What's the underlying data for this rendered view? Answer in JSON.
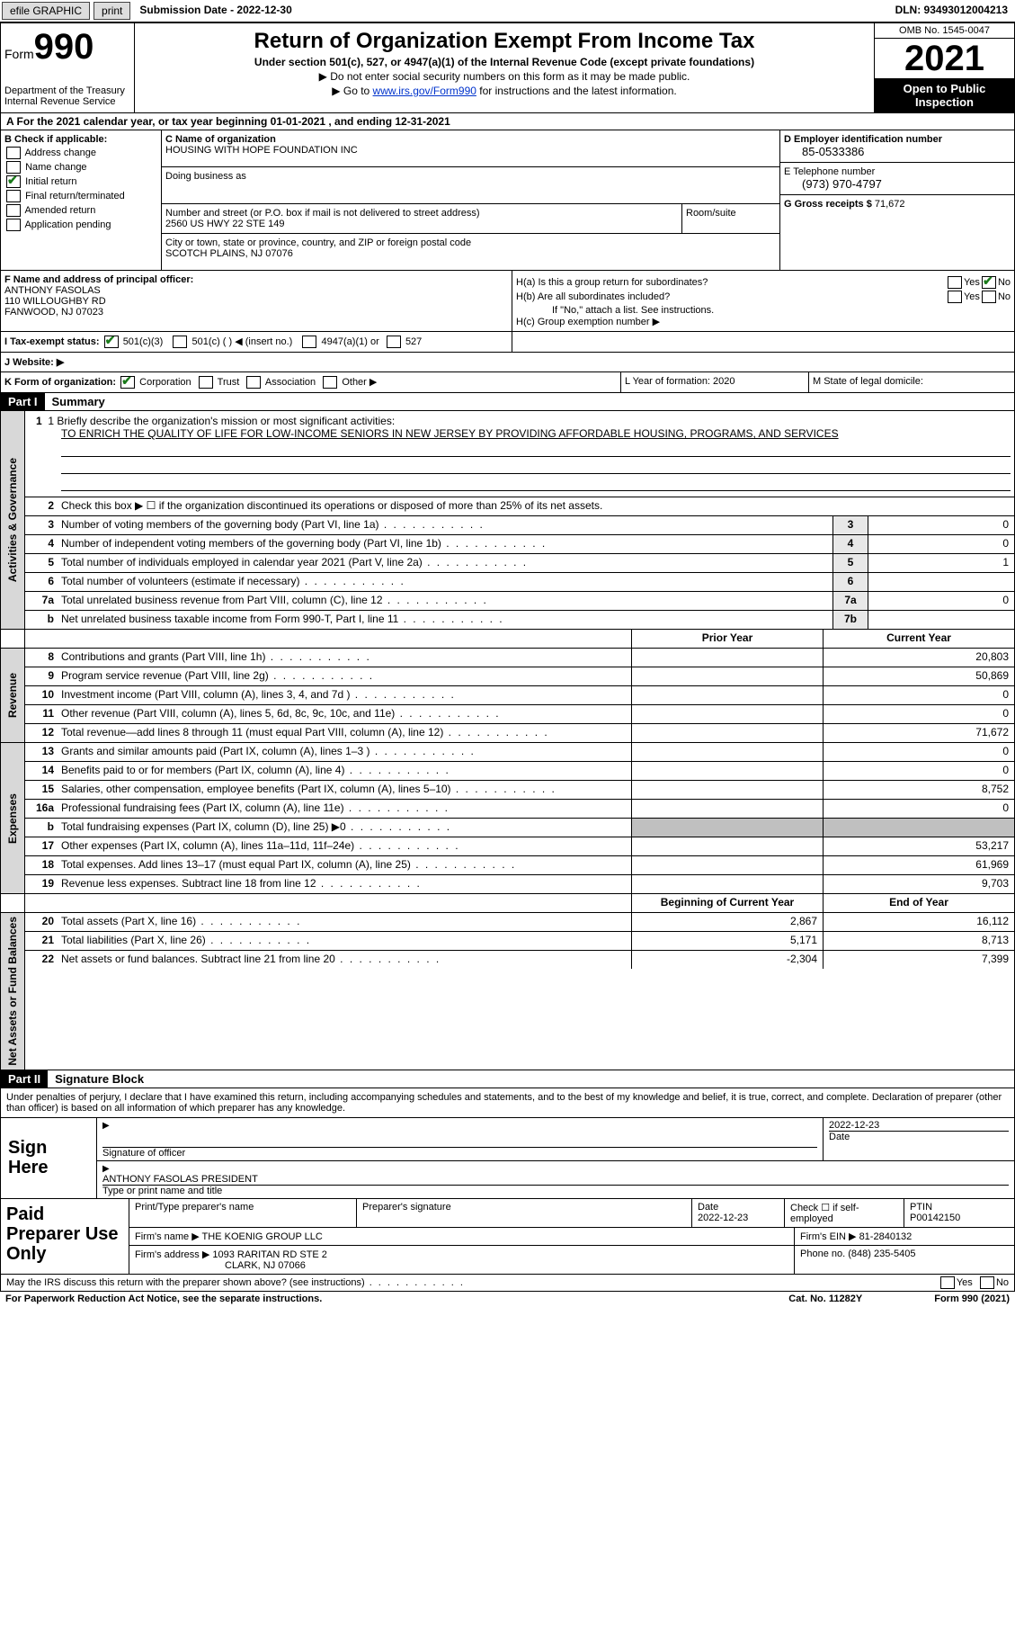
{
  "topbar": {
    "efile": "efile GRAPHIC",
    "print": "print",
    "sub_label": "Submission Date - 2022-12-30",
    "dln_label": "DLN: 93493012004213"
  },
  "header": {
    "form_word": "Form",
    "form_num": "990",
    "title": "Return of Organization Exempt From Income Tax",
    "subtitle": "Under section 501(c), 527, or 4947(a)(1) of the Internal Revenue Code (except private foundations)",
    "note1": "▶ Do not enter social security numbers on this form as it may be made public.",
    "note2_pre": "▶ Go to ",
    "note2_link": "www.irs.gov/Form990",
    "note2_post": " for instructions and the latest information.",
    "dept": "Department of the Treasury",
    "irs": "Internal Revenue Service",
    "omb": "OMB No. 1545-0047",
    "year": "2021",
    "open": "Open to Public Inspection"
  },
  "rowA": "A For the 2021 calendar year, or tax year beginning 01-01-2021   , and ending 12-31-2021",
  "colB": {
    "hdr": "B Check if applicable:",
    "items": [
      "Address change",
      "Name change",
      "Initial return",
      "Final return/terminated",
      "Amended return",
      "Application pending"
    ],
    "checked_idx": 2
  },
  "colC": {
    "name_lbl": "C Name of organization",
    "name": "HOUSING WITH HOPE FOUNDATION INC",
    "dba_lbl": "Doing business as",
    "addr_lbl": "Number and street (or P.O. box if mail is not delivered to street address)",
    "room_lbl": "Room/suite",
    "addr": "2560 US HWY 22 STE 149",
    "city_lbl": "City or town, state or province, country, and ZIP or foreign postal code",
    "city": "SCOTCH PLAINS, NJ  07076"
  },
  "colDE": {
    "d_lbl": "D Employer identification number",
    "ein": "85-0533386",
    "e_lbl": "E Telephone number",
    "phone": "(973) 970-4797",
    "g_lbl": "G Gross receipts $",
    "gross": "71,672"
  },
  "colF": {
    "lbl": "F Name and address of principal officer:",
    "name": "ANTHONY FASOLAS",
    "addr1": "110 WILLOUGHBY RD",
    "addr2": "FANWOOD, NJ  07023"
  },
  "colH": {
    "ha": "H(a)  Is this a group return for subordinates?",
    "hb": "H(b)  Are all subordinates included?",
    "hb_note": "If \"No,\" attach a list. See instructions.",
    "hc": "H(c)  Group exemption number ▶",
    "yes": "Yes",
    "no": "No"
  },
  "rowI": {
    "lbl": "I   Tax-exempt status:",
    "opt1": "501(c)(3)",
    "opt2": "501(c) (  ) ◀ (insert no.)",
    "opt3": "4947(a)(1) or",
    "opt4": "527"
  },
  "rowJ": "J   Website: ▶",
  "rowK": {
    "lbl": "K Form of organization:",
    "opts": [
      "Corporation",
      "Trust",
      "Association",
      "Other ▶"
    ],
    "L": "L Year of formation: 2020",
    "M": "M State of legal domicile:"
  },
  "part1": {
    "hdr": "Part I",
    "title": "Summary",
    "tab1": "Activities & Governance",
    "line1_lbl": "1   Briefly describe the organization's mission or most significant activities:",
    "line1_val": "TO ENRICH THE QUALITY OF LIFE FOR LOW-INCOME SENIORS IN NEW JERSEY BY PROVIDING AFFORDABLE HOUSING, PROGRAMS, AND SERVICES",
    "line2": "Check this box ▶ ☐  if the organization discontinued its operations or disposed of more than 25% of its net assets.",
    "rows_ag": [
      {
        "n": "3",
        "d": "Number of voting members of the governing body (Part VI, line 1a)",
        "b": "3",
        "v": "0"
      },
      {
        "n": "4",
        "d": "Number of independent voting members of the governing body (Part VI, line 1b)",
        "b": "4",
        "v": "0"
      },
      {
        "n": "5",
        "d": "Total number of individuals employed in calendar year 2021 (Part V, line 2a)",
        "b": "5",
        "v": "1"
      },
      {
        "n": "6",
        "d": "Total number of volunteers (estimate if necessary)",
        "b": "6",
        "v": ""
      },
      {
        "n": "7a",
        "d": "Total unrelated business revenue from Part VIII, column (C), line 12",
        "b": "7a",
        "v": "0"
      },
      {
        "n": "b",
        "d": "Net unrelated business taxable income from Form 990-T, Part I, line 11",
        "b": "7b",
        "v": ""
      }
    ],
    "prior_hdr": "Prior Year",
    "curr_hdr": "Current Year",
    "tab2": "Revenue",
    "rows_rev": [
      {
        "n": "8",
        "d": "Contributions and grants (Part VIII, line 1h)",
        "p": "",
        "c": "20,803"
      },
      {
        "n": "9",
        "d": "Program service revenue (Part VIII, line 2g)",
        "p": "",
        "c": "50,869"
      },
      {
        "n": "10",
        "d": "Investment income (Part VIII, column (A), lines 3, 4, and 7d )",
        "p": "",
        "c": "0"
      },
      {
        "n": "11",
        "d": "Other revenue (Part VIII, column (A), lines 5, 6d, 8c, 9c, 10c, and 11e)",
        "p": "",
        "c": "0"
      },
      {
        "n": "12",
        "d": "Total revenue—add lines 8 through 11 (must equal Part VIII, column (A), line 12)",
        "p": "",
        "c": "71,672"
      }
    ],
    "tab3": "Expenses",
    "rows_exp": [
      {
        "n": "13",
        "d": "Grants and similar amounts paid (Part IX, column (A), lines 1–3 )",
        "p": "",
        "c": "0"
      },
      {
        "n": "14",
        "d": "Benefits paid to or for members (Part IX, column (A), line 4)",
        "p": "",
        "c": "0"
      },
      {
        "n": "15",
        "d": "Salaries, other compensation, employee benefits (Part IX, column (A), lines 5–10)",
        "p": "",
        "c": "8,752"
      },
      {
        "n": "16a",
        "d": "Professional fundraising fees (Part IX, column (A), line 11e)",
        "p": "",
        "c": "0"
      },
      {
        "n": "b",
        "d": "Total fundraising expenses (Part IX, column (D), line 25) ▶0",
        "p": "GRAY",
        "c": "GRAY"
      },
      {
        "n": "17",
        "d": "Other expenses (Part IX, column (A), lines 11a–11d, 11f–24e)",
        "p": "",
        "c": "53,217"
      },
      {
        "n": "18",
        "d": "Total expenses. Add lines 13–17 (must equal Part IX, column (A), line 25)",
        "p": "",
        "c": "61,969"
      },
      {
        "n": "19",
        "d": "Revenue less expenses. Subtract line 18 from line 12",
        "p": "",
        "c": "9,703"
      }
    ],
    "tab4": "Net Assets or Fund Balances",
    "boy_hdr": "Beginning of Current Year",
    "eoy_hdr": "End of Year",
    "rows_na": [
      {
        "n": "20",
        "d": "Total assets (Part X, line 16)",
        "p": "2,867",
        "c": "16,112"
      },
      {
        "n": "21",
        "d": "Total liabilities (Part X, line 26)",
        "p": "5,171",
        "c": "8,713"
      },
      {
        "n": "22",
        "d": "Net assets or fund balances. Subtract line 21 from line 20",
        "p": "-2,304",
        "c": "7,399"
      }
    ]
  },
  "part2": {
    "hdr": "Part II",
    "title": "Signature Block",
    "declare": "Under penalties of perjury, I declare that I have examined this return, including accompanying schedules and statements, and to the best of my knowledge and belief, it is true, correct, and complete. Declaration of preparer (other than officer) is based on all information of which preparer has any knowledge.",
    "sign_here": "Sign Here",
    "sig_officer": "Signature of officer",
    "sig_date": "2022-12-23",
    "date_lbl": "Date",
    "officer_name": "ANTHONY FASOLAS  PRESIDENT",
    "type_lbl": "Type or print name and title",
    "paid": "Paid Preparer Use Only",
    "pt_name_lbl": "Print/Type preparer's name",
    "pt_sig_lbl": "Preparer's signature",
    "pt_date_lbl": "Date",
    "pt_date": "2022-12-23",
    "pt_check_lbl": "Check ☐ if self-employed",
    "ptin_lbl": "PTIN",
    "ptin": "P00142150",
    "firm_name_lbl": "Firm's name    ▶",
    "firm_name": "THE KOENIG GROUP LLC",
    "firm_ein_lbl": "Firm's EIN ▶",
    "firm_ein": "81-2840132",
    "firm_addr_lbl": "Firm's address ▶",
    "firm_addr1": "1093 RARITAN RD STE 2",
    "firm_addr2": "CLARK, NJ  07066",
    "firm_phone_lbl": "Phone no.",
    "firm_phone": "(848) 235-5405",
    "discuss": "May the IRS discuss this return with the preparer shown above? (see instructions)"
  },
  "footer": {
    "pra": "For Paperwork Reduction Act Notice, see the separate instructions.",
    "cat": "Cat. No. 11282Y",
    "form": "Form 990 (2021)"
  }
}
